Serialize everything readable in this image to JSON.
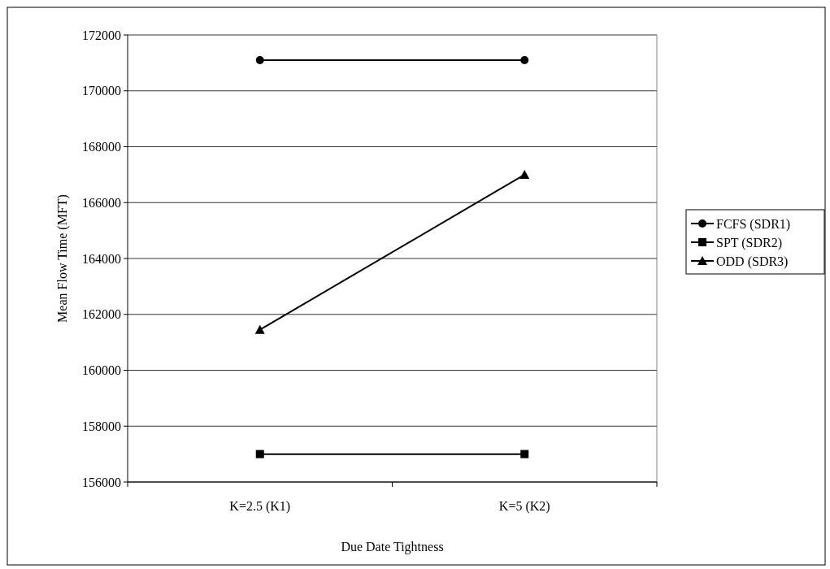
{
  "chart_data": {
    "type": "line",
    "xlabel": "Due Date Tightness",
    "ylabel": "Mean Flow Time (MFT)",
    "categories": [
      "K=2.5 (K1)",
      "K=5 (K2)"
    ],
    "series": [
      {
        "name": "FCFS (SDR1)",
        "color": "#000000",
        "marker": "circle",
        "values": [
          171100,
          171100
        ]
      },
      {
        "name": "SPT (SDR2)",
        "color": "#000000",
        "marker": "square",
        "values": [
          157000,
          157000
        ]
      },
      {
        "name": "ODD (SDR3)",
        "color": "#000000",
        "marker": "triangle",
        "values": [
          161450,
          167000
        ]
      }
    ],
    "ylim": [
      156000,
      172000
    ],
    "yticks": [
      156000,
      158000,
      160000,
      162000,
      164000,
      166000,
      168000,
      170000,
      172000
    ],
    "grid": "y",
    "legend": "right",
    "line_style": "solid"
  }
}
